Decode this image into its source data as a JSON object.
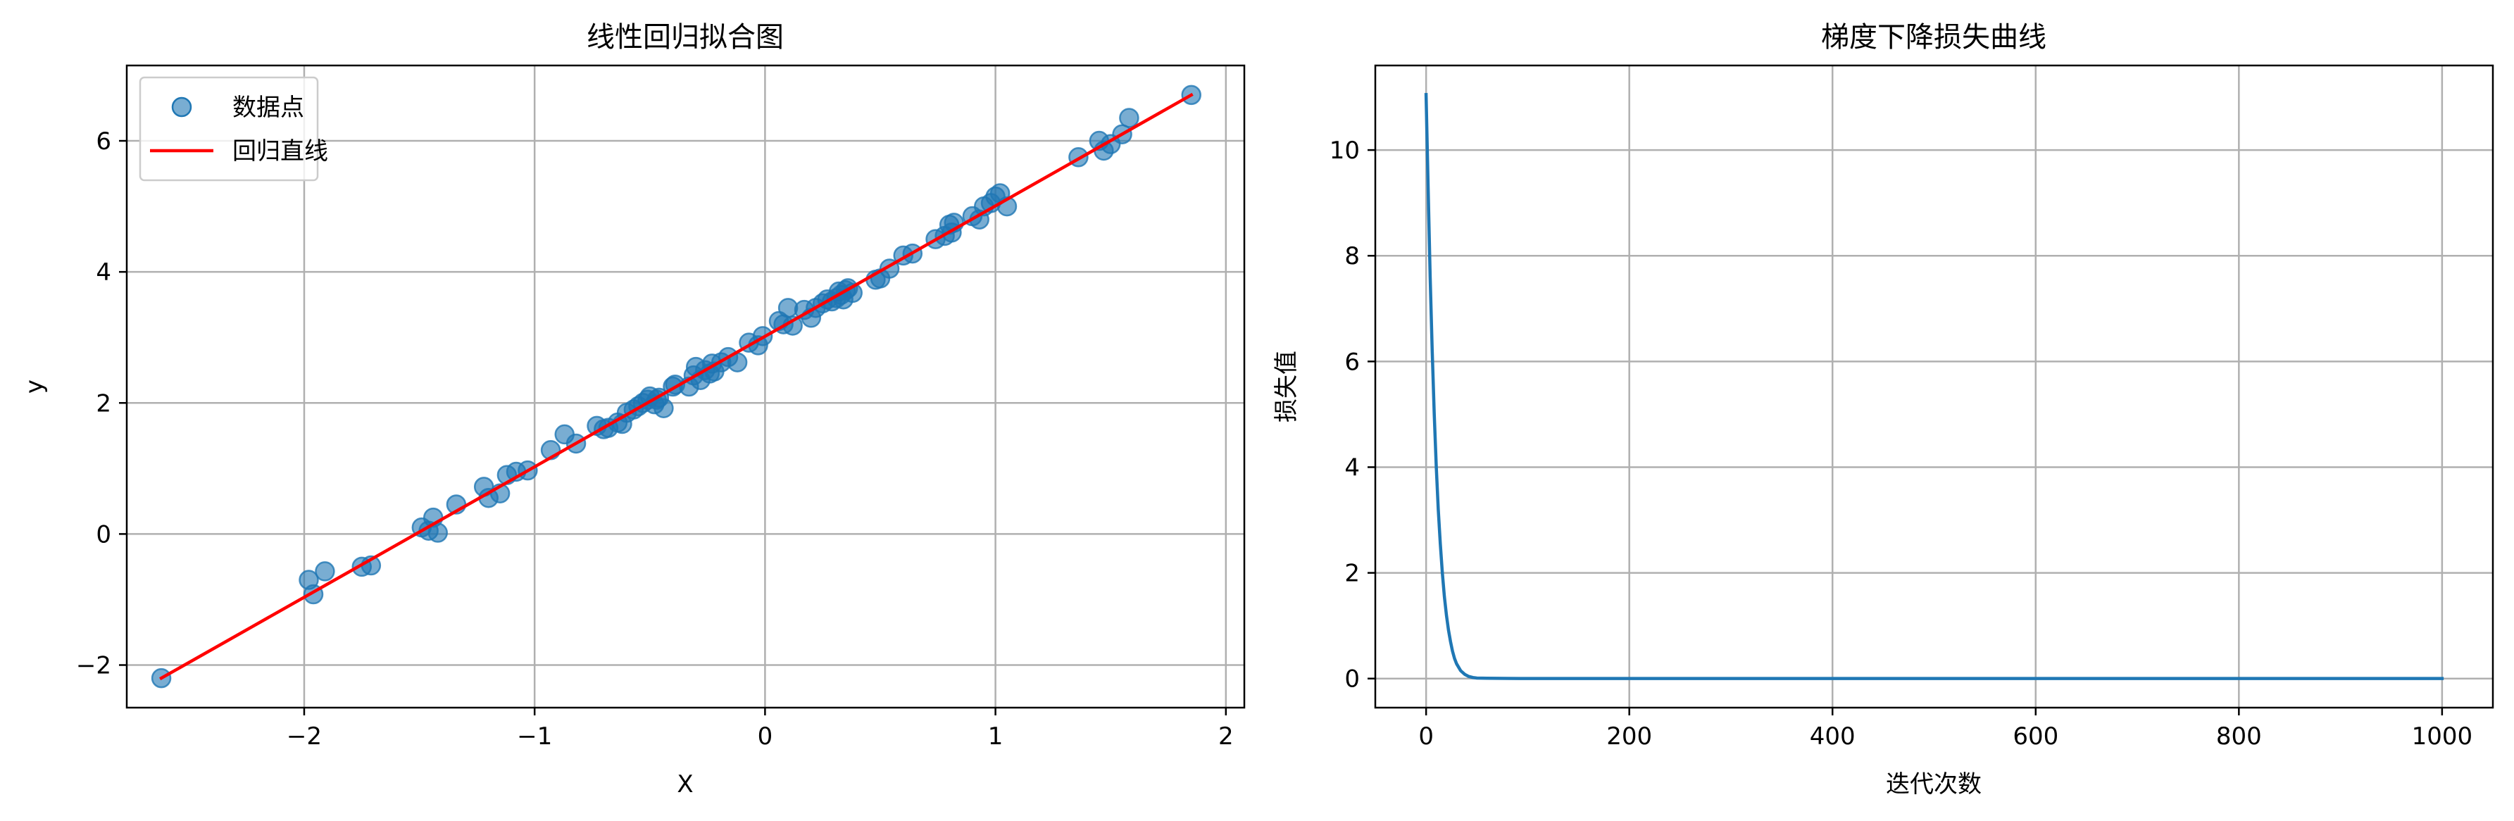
{
  "chart_data": [
    {
      "type": "scatter",
      "title": "线性回归拟合图",
      "xlabel": "X",
      "ylabel": "y",
      "xlim": [
        -2.77,
        2.08
      ],
      "ylim": [
        -2.65,
        7.15
      ],
      "xticks": [
        -2,
        -1,
        0,
        1,
        2
      ],
      "yticks": [
        -2,
        0,
        2,
        4,
        6
      ],
      "xtick_labels": [
        "−2",
        "−1",
        "0",
        "1",
        "2"
      ],
      "ytick_labels": [
        "−2",
        "0",
        "2",
        "4",
        "6"
      ],
      "grid": true,
      "legend_position": "top-left",
      "series": [
        {
          "name": "数据点",
          "kind": "scatter",
          "color": "#1f77b4",
          "x": [
            -2.62,
            -1.98,
            -1.96,
            -1.91,
            -1.75,
            -1.71,
            -1.49,
            -1.46,
            -1.44,
            -1.42,
            -1.34,
            -1.22,
            -1.2,
            -1.15,
            -1.12,
            -1.08,
            -1.03,
            -0.93,
            -0.87,
            -0.82,
            -0.73,
            -0.7,
            -0.68,
            -0.64,
            -0.62,
            -0.6,
            -0.57,
            -0.55,
            -0.53,
            -0.51,
            -0.5,
            -0.48,
            -0.47,
            -0.46,
            -0.44,
            -0.4,
            -0.39,
            -0.33,
            -0.31,
            -0.3,
            -0.28,
            -0.26,
            -0.24,
            -0.23,
            -0.22,
            -0.19,
            -0.16,
            -0.12,
            -0.07,
            -0.03,
            -0.01,
            0.06,
            0.08,
            0.1,
            0.12,
            0.17,
            0.2,
            0.22,
            0.25,
            0.27,
            0.29,
            0.31,
            0.32,
            0.33,
            0.34,
            0.35,
            0.36,
            0.38,
            0.48,
            0.5,
            0.54,
            0.6,
            0.64,
            0.74,
            0.78,
            0.8,
            0.81,
            0.82,
            0.9,
            0.93,
            0.95,
            0.98,
            1.0,
            1.02,
            1.05,
            1.36,
            1.45,
            1.47,
            1.5,
            1.55,
            1.58,
            1.85
          ],
          "y": [
            -2.2,
            -0.7,
            -0.92,
            -0.57,
            -0.5,
            -0.48,
            0.1,
            0.05,
            0.25,
            0.02,
            0.45,
            0.72,
            0.55,
            0.62,
            0.9,
            0.95,
            0.97,
            1.28,
            1.52,
            1.38,
            1.65,
            1.6,
            1.62,
            1.7,
            1.68,
            1.85,
            1.9,
            1.95,
            2.0,
            2.05,
            2.1,
            1.98,
            2.05,
            2.08,
            1.92,
            2.25,
            2.28,
            2.25,
            2.42,
            2.55,
            2.35,
            2.5,
            2.45,
            2.6,
            2.48,
            2.62,
            2.7,
            2.62,
            2.92,
            2.88,
            3.02,
            3.25,
            3.2,
            3.45,
            3.18,
            3.42,
            3.3,
            3.45,
            3.52,
            3.58,
            3.55,
            3.6,
            3.7,
            3.65,
            3.58,
            3.72,
            3.75,
            3.68,
            3.88,
            3.9,
            4.05,
            4.25,
            4.28,
            4.5,
            4.55,
            4.72,
            4.6,
            4.75,
            4.85,
            4.8,
            5.0,
            5.05,
            5.15,
            5.2,
            5.0,
            5.75,
            6.0,
            5.85,
            5.95,
            6.1,
            6.35,
            6.7
          ],
          "marker_alpha": 0.6
        },
        {
          "name": "回归直线",
          "kind": "line",
          "color": "#ff0000",
          "x": [
            -2.62,
            1.85
          ],
          "y": [
            -2.2,
            6.7
          ]
        }
      ]
    },
    {
      "type": "line",
      "title": "梯度下降损失曲线",
      "xlabel": "迭代次数",
      "ylabel": "损失值",
      "xlim": [
        -50,
        1050
      ],
      "ylim": [
        -0.55,
        11.6
      ],
      "xticks": [
        0,
        200,
        400,
        600,
        800,
        1000
      ],
      "yticks": [
        0,
        2,
        4,
        6,
        8,
        10
      ],
      "xtick_labels": [
        "0",
        "200",
        "400",
        "600",
        "800",
        "1000"
      ],
      "ytick_labels": [
        "0",
        "2",
        "4",
        "6",
        "8",
        "10"
      ],
      "grid": true,
      "series": [
        {
          "kind": "line",
          "color": "#1f77b4",
          "x": [
            0,
            2,
            4,
            6,
            8,
            10,
            12,
            14,
            16,
            18,
            20,
            22,
            24,
            26,
            28,
            30,
            34,
            38,
            42,
            46,
            50,
            60,
            80,
            100,
            200,
            400,
            600,
            800,
            1000
          ],
          "y": [
            11.05,
            9.3,
            7.6,
            6.2,
            5.0,
            4.0,
            3.2,
            2.55,
            2.0,
            1.55,
            1.2,
            0.92,
            0.7,
            0.52,
            0.38,
            0.28,
            0.15,
            0.08,
            0.04,
            0.02,
            0.01,
            0.005,
            0.003,
            0.002,
            0.001,
            0.001,
            0.001,
            0.001,
            0.001
          ]
        }
      ]
    }
  ]
}
